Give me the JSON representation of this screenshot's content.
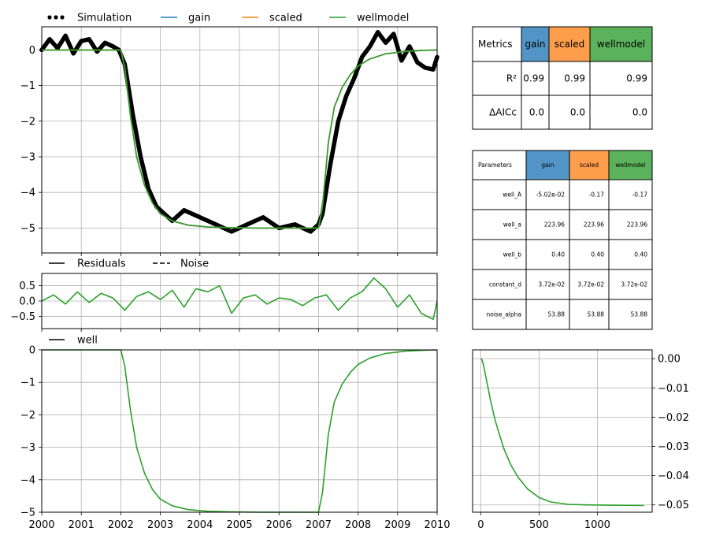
{
  "chart_data": [
    {
      "type": "line",
      "panel": "heads",
      "legend": [
        "Simulation",
        "gain",
        "scaled",
        "wellmodel"
      ],
      "legend_placement": "top",
      "grid": true,
      "xlim": [
        2000,
        2010
      ],
      "ylim": [
        -5.7,
        0.65
      ],
      "yticks": [
        0,
        -1,
        -2,
        -3,
        -4,
        -5
      ],
      "series": [
        {
          "name": "Simulation",
          "style": "dotted",
          "color": "#000000",
          "x": [
            2000.0,
            2000.2,
            2000.4,
            2000.6,
            2000.8,
            2001.0,
            2001.2,
            2001.4,
            2001.6,
            2001.8,
            2001.95,
            2002.1,
            2002.3,
            2002.5,
            2002.7,
            2002.9,
            2003.1,
            2003.3,
            2003.6,
            2004.0,
            2004.4,
            2004.8,
            2005.2,
            2005.6,
            2006.0,
            2006.4,
            2006.8,
            2007.0,
            2007.1,
            2007.3,
            2007.5,
            2007.7,
            2007.9,
            2008.1,
            2008.3,
            2008.5,
            2008.7,
            2008.9,
            2009.1,
            2009.3,
            2009.5,
            2009.7,
            2009.9,
            2010.0
          ],
          "y": [
            0.0,
            0.3,
            0.05,
            0.4,
            -0.1,
            0.25,
            0.3,
            -0.05,
            0.2,
            0.1,
            0.0,
            -0.4,
            -1.8,
            -3.0,
            -3.9,
            -4.4,
            -4.6,
            -4.8,
            -4.5,
            -4.7,
            -4.9,
            -5.1,
            -4.9,
            -4.7,
            -5.0,
            -4.9,
            -5.1,
            -4.9,
            -4.6,
            -3.2,
            -2.0,
            -1.3,
            -0.8,
            -0.2,
            0.1,
            0.5,
            0.2,
            0.45,
            -0.3,
            0.1,
            -0.35,
            -0.5,
            -0.55,
            -0.2
          ]
        },
        {
          "name": "gain",
          "color": "#1f77b4",
          "x": [
            2000.0,
            2002.0,
            2002.1,
            2002.25,
            2002.4,
            2002.6,
            2002.8,
            2003.0,
            2003.3,
            2003.7,
            2004.2,
            2004.8,
            2005.5,
            2006.5,
            2007.0,
            2007.1,
            2007.25,
            2007.4,
            2007.6,
            2007.8,
            2008.0,
            2008.3,
            2008.7,
            2009.2,
            2009.7,
            2010.0
          ],
          "y": [
            0.0,
            0.0,
            -0.5,
            -1.9,
            -3.0,
            -3.8,
            -4.3,
            -4.6,
            -4.8,
            -4.92,
            -4.97,
            -4.99,
            -5.0,
            -5.0,
            -5.0,
            -4.4,
            -2.6,
            -1.6,
            -1.05,
            -0.7,
            -0.45,
            -0.25,
            -0.11,
            -0.04,
            -0.01,
            0.0
          ]
        },
        {
          "name": "scaled",
          "color": "#ff7f0e",
          "x": [
            2000.0,
            2002.0,
            2002.1,
            2002.25,
            2002.4,
            2002.6,
            2002.8,
            2003.0,
            2003.3,
            2003.7,
            2004.2,
            2004.8,
            2005.5,
            2006.5,
            2007.0,
            2007.1,
            2007.25,
            2007.4,
            2007.6,
            2007.8,
            2008.0,
            2008.3,
            2008.7,
            2009.2,
            2009.7,
            2010.0
          ],
          "y": [
            0.0,
            0.0,
            -0.5,
            -1.9,
            -3.0,
            -3.8,
            -4.3,
            -4.6,
            -4.8,
            -4.92,
            -4.97,
            -4.99,
            -5.0,
            -5.0,
            -5.0,
            -4.4,
            -2.6,
            -1.6,
            -1.05,
            -0.7,
            -0.45,
            -0.25,
            -0.11,
            -0.04,
            -0.01,
            0.0
          ]
        },
        {
          "name": "wellmodel",
          "color": "#2ca02c",
          "x": [
            2000.0,
            2002.0,
            2002.1,
            2002.25,
            2002.4,
            2002.6,
            2002.8,
            2003.0,
            2003.3,
            2003.7,
            2004.2,
            2004.8,
            2005.5,
            2006.5,
            2007.0,
            2007.1,
            2007.25,
            2007.4,
            2007.6,
            2007.8,
            2008.0,
            2008.3,
            2008.7,
            2009.2,
            2009.7,
            2010.0
          ],
          "y": [
            0.0,
            0.0,
            -0.5,
            -1.9,
            -3.0,
            -3.8,
            -4.3,
            -4.6,
            -4.8,
            -4.92,
            -4.97,
            -4.99,
            -5.0,
            -5.0,
            -5.0,
            -4.4,
            -2.6,
            -1.6,
            -1.05,
            -0.7,
            -0.45,
            -0.25,
            -0.11,
            -0.04,
            -0.01,
            0.0
          ]
        }
      ]
    },
    {
      "type": "line",
      "panel": "residuals",
      "legend": [
        "Residuals",
        "Noise"
      ],
      "legend_placement": "top",
      "grid": true,
      "xlim": [
        2000,
        2010
      ],
      "ylim": [
        -0.9,
        0.9
      ],
      "yticks": [
        0.5,
        0.0,
        -0.5
      ],
      "yticklabels": [
        "0.5",
        "0.0",
        "−0.5"
      ],
      "series": [
        {
          "name": "Residuals",
          "color": "#2ca02c",
          "x": [
            2000.0,
            2000.3,
            2000.6,
            2000.9,
            2001.2,
            2001.5,
            2001.8,
            2002.1,
            2002.4,
            2002.7,
            2003.0,
            2003.3,
            2003.6,
            2003.9,
            2004.2,
            2004.5,
            2004.8,
            2005.1,
            2005.4,
            2005.7,
            2006.0,
            2006.3,
            2006.6,
            2006.9,
            2007.2,
            2007.5,
            2007.8,
            2008.1,
            2008.4,
            2008.7,
            2009.0,
            2009.3,
            2009.6,
            2009.9,
            2010.0
          ],
          "y": [
            0.0,
            0.2,
            -0.1,
            0.3,
            -0.05,
            0.25,
            0.1,
            -0.3,
            0.15,
            0.3,
            0.05,
            0.35,
            -0.2,
            0.4,
            0.3,
            0.5,
            -0.4,
            0.1,
            0.2,
            -0.1,
            0.1,
            0.05,
            -0.15,
            0.1,
            0.2,
            -0.3,
            0.1,
            0.3,
            0.75,
            0.4,
            -0.2,
            0.2,
            -0.4,
            -0.6,
            0.0
          ]
        }
      ]
    },
    {
      "type": "line",
      "panel": "well contribution",
      "legend": [
        "well"
      ],
      "legend_placement": "top-left",
      "grid": true,
      "xlim": [
        2000,
        2010
      ],
      "xticks": [
        "2000",
        "2001",
        "2002",
        "2003",
        "2004",
        "2005",
        "2006",
        "2007",
        "2008",
        "2009",
        "2010"
      ],
      "ylim": [
        -5.0,
        0.0
      ],
      "yticks": [
        0,
        -1,
        -2,
        -3,
        -4,
        -5
      ],
      "series": [
        {
          "name": "well",
          "color": "#2ca02c",
          "x": [
            2000.0,
            2002.0,
            2002.1,
            2002.25,
            2002.4,
            2002.6,
            2002.8,
            2003.0,
            2003.3,
            2003.7,
            2004.2,
            2004.8,
            2005.5,
            2006.5,
            2007.0,
            2007.1,
            2007.25,
            2007.4,
            2007.6,
            2007.8,
            2008.0,
            2008.3,
            2008.7,
            2009.2,
            2009.7,
            2010.0
          ],
          "y": [
            0.0,
            0.0,
            -0.5,
            -1.9,
            -3.0,
            -3.8,
            -4.3,
            -4.6,
            -4.8,
            -4.92,
            -4.97,
            -4.99,
            -5.0,
            -5.0,
            -5.0,
            -4.4,
            -2.6,
            -1.6,
            -1.05,
            -0.7,
            -0.45,
            -0.25,
            -0.11,
            -0.04,
            -0.01,
            0.0
          ]
        }
      ]
    },
    {
      "type": "line",
      "panel": "step response",
      "grid": true,
      "xlim": [
        -70,
        1470
      ],
      "xticks": [
        0,
        500,
        1000
      ],
      "ylim": [
        -0.0525,
        0.003
      ],
      "yticks": [
        0.0,
        -0.01,
        -0.02,
        -0.03,
        -0.04,
        -0.05
      ],
      "yticklabels": [
        "0.00",
        "−0.01",
        "−0.02",
        "−0.03",
        "−0.04",
        "−0.05"
      ],
      "series": [
        {
          "name": "wellmodel",
          "color": "#2ca02c",
          "x": [
            0,
            10,
            25,
            50,
            80,
            120,
            160,
            200,
            260,
            320,
            400,
            500,
            600,
            750,
            900,
            1100,
            1400
          ],
          "y": [
            0.0,
            -0.0003,
            -0.0025,
            -0.0075,
            -0.0135,
            -0.0205,
            -0.026,
            -0.031,
            -0.0365,
            -0.0405,
            -0.0445,
            -0.0475,
            -0.049,
            -0.0498,
            -0.05,
            -0.0501,
            -0.0502
          ]
        }
      ]
    }
  ],
  "metrics_table": {
    "corner": "Metrics",
    "columns": [
      {
        "label": "gain",
        "color": "#5294c6"
      },
      {
        "label": "scaled",
        "color": "#fe9e4d"
      },
      {
        "label": "wellmodel",
        "color": "#5cb25c"
      }
    ],
    "rows": [
      {
        "label": "R²",
        "values": [
          "0.99",
          "0.99",
          "0.99"
        ]
      },
      {
        "label": "ΔAICc",
        "values": [
          "0.0",
          "0.0",
          "0.0"
        ]
      }
    ]
  },
  "parameters_table": {
    "corner": "Parameters",
    "columns": [
      {
        "label": "gain",
        "color": "#5294c6"
      },
      {
        "label": "scaled",
        "color": "#fe9e4d"
      },
      {
        "label": "wellmodel",
        "color": "#5cb25c"
      }
    ],
    "rows": [
      {
        "label": "well_A",
        "values": [
          "-5.02e-02",
          "-0.17",
          "-0.17"
        ]
      },
      {
        "label": "well_a",
        "values": [
          "223.96",
          "223.96",
          "223.96"
        ]
      },
      {
        "label": "well_b",
        "values": [
          "0.40",
          "0.40",
          "0.40"
        ]
      },
      {
        "label": "constant_d",
        "values": [
          "3.72e-02",
          "3.72e-02",
          "3.72e-02"
        ]
      },
      {
        "label": "noise_alpha",
        "values": [
          "53.88",
          "53.88",
          "53.88"
        ]
      }
    ]
  }
}
